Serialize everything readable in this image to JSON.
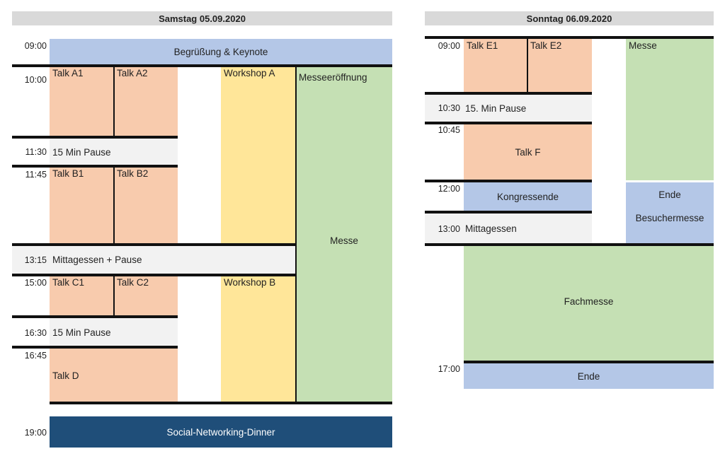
{
  "saturday": {
    "header": "Samstag 05.09.2020",
    "times": {
      "t0900": "09:00",
      "t1000": "10:00",
      "t1130": "11:30",
      "t1145": "11:45",
      "t1315": "13:15",
      "t1500": "15:00",
      "t1630": "16:30",
      "t1645": "16:45",
      "t1900": "19:00"
    },
    "events": {
      "keynote": "Begrüßung & Keynote",
      "talk_a1": "Talk A1",
      "talk_a2": "Talk A2",
      "workshop_a": "Workshop A",
      "messe_opening": "Messeeröffnung",
      "pause1": "15 Min Pause",
      "talk_b1": "Talk B1",
      "talk_b2": "Talk B2",
      "messe": "Messe",
      "lunch": "Mittagessen + Pause",
      "talk_c1": "Talk C1",
      "talk_c2": "Talk C2",
      "workshop_b": "Workshop B",
      "pause2": "15 Min Pause",
      "talk_d": "Talk D",
      "dinner": "Social-Networking-Dinner"
    }
  },
  "sunday": {
    "header": "Sonntag 06.09.2020",
    "times": {
      "t0900": "09:00",
      "t1030": "10:30",
      "t1045": "10:45",
      "t1200": "12:00",
      "t1300": "13:00",
      "t1700": "17:00"
    },
    "events": {
      "talk_e1": "Talk E1",
      "talk_e2": "Talk E2",
      "messe": "Messe",
      "pause": "15. Min Pause",
      "talk_f": "Talk F",
      "congress_end": "Kongressende",
      "visitor_end_1": "Ende",
      "visitor_end_2": "Besuchermesse",
      "lunch": "Mittagessen",
      "fachmesse": "Fachmesse",
      "end": "Ende"
    }
  },
  "colors": {
    "talk": "#f8cbad",
    "workshop": "#ffe699",
    "messe": "#c5e0b4",
    "plenary": "#b4c7e7",
    "break": "#f2f2f2",
    "dinner": "#1f4e79"
  }
}
